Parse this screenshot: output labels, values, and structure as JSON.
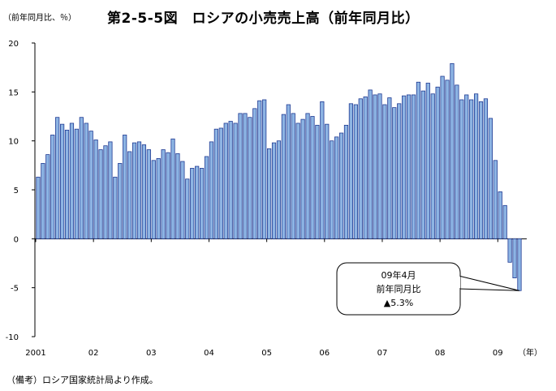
{
  "unit_label": "（前年同月比、％）",
  "title": "第2-5-5図　ロシアの小売売上高（前年同月比）",
  "source_note": "（備考）ロシア国家統計局より作成。",
  "colors": {
    "bar_fill": "#8db4e3",
    "bar_stroke": "#1f3a93",
    "axis": "#000000"
  },
  "chart_data": {
    "type": "bar",
    "ylim": [
      -10,
      20
    ],
    "yticks": [
      -10,
      -5,
      0,
      5,
      10,
      15,
      20
    ],
    "ytick_labels": [
      "-10",
      "-5",
      "0",
      "5",
      "10",
      "15",
      "20"
    ],
    "x_labels": [
      {
        "label": "2001",
        "index": 0
      },
      {
        "label": "02",
        "index": 12
      },
      {
        "label": "03",
        "index": 24
      },
      {
        "label": "04",
        "index": 36
      },
      {
        "label": "05",
        "index": 48
      },
      {
        "label": "06",
        "index": 60
      },
      {
        "label": "07",
        "index": 72
      },
      {
        "label": "08",
        "index": 84
      },
      {
        "label": "09",
        "index": 96
      }
    ],
    "x_unit": "（年）",
    "grid": false,
    "values": [
      6.3,
      7.7,
      8.6,
      10.6,
      12.4,
      11.7,
      11.1,
      11.8,
      11.2,
      12.4,
      11.8,
      11.0,
      10.1,
      9.1,
      9.5,
      9.9,
      6.3,
      7.7,
      10.6,
      8.9,
      9.8,
      9.9,
      9.6,
      9.1,
      8.0,
      8.2,
      9.1,
      8.8,
      10.2,
      8.7,
      7.9,
      6.1,
      7.2,
      7.4,
      7.2,
      8.4,
      9.9,
      11.2,
      11.3,
      11.8,
      12.0,
      11.8,
      12.8,
      12.8,
      12.4,
      13.3,
      14.1,
      14.2,
      9.2,
      9.8,
      10.0,
      12.7,
      13.7,
      12.8,
      11.8,
      12.2,
      12.8,
      12.5,
      11.6,
      14.0,
      11.7,
      10.0,
      10.4,
      10.8,
      11.6,
      13.8,
      13.7,
      14.3,
      14.5,
      15.2,
      14.7,
      14.8,
      13.7,
      14.4,
      13.4,
      13.8,
      14.6,
      14.7,
      14.7,
      16.0,
      15.1,
      15.9,
      14.8,
      15.5,
      16.6,
      16.2,
      17.9,
      15.7,
      14.2,
      14.7,
      14.2,
      14.8,
      14.0,
      14.3,
      12.3,
      8.0,
      4.8,
      3.4,
      -2.4,
      -4.0,
      -5.3
    ],
    "annotation": {
      "lines": [
        "09年4月",
        "前年同月比",
        "▲5.3%"
      ],
      "target_index": 100
    }
  }
}
